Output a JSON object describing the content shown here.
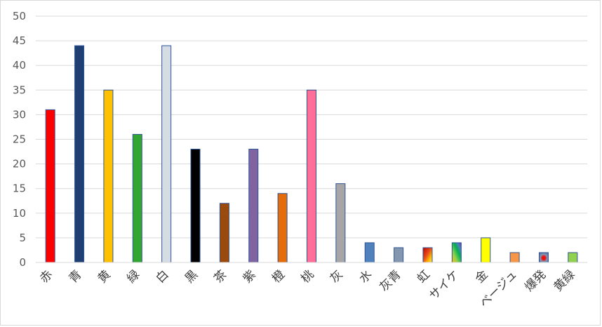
{
  "chart_data": {
    "type": "bar",
    "categories": [
      "赤",
      "青",
      "黄",
      "緑",
      "白",
      "黒",
      "茶",
      "紫",
      "橙",
      "桃",
      "灰",
      "水",
      "灰青",
      "虹",
      "サイケ",
      "金",
      "ベージュ",
      "爆発",
      "黄緑"
    ],
    "values": [
      31,
      44,
      35,
      26,
      44,
      23,
      12,
      23,
      14,
      35,
      16,
      4,
      3,
      3,
      4,
      5,
      2,
      2,
      2
    ],
    "colors": [
      "#ff0000",
      "#1f3f73",
      "#ffc000",
      "#33a532",
      "#d6dce4",
      "#000000",
      "#9a4a0c",
      "#8064a2",
      "#e46c0a",
      "#ff6f9a",
      "#a6a6a6",
      "#4f81bd",
      "#8497b0",
      "gradient-rainbow",
      "gradient-psychedelic",
      "#ffff00",
      "#f79646",
      "pattern-explosion",
      "#92d050"
    ],
    "bar_outline": "#2f5597",
    "ylim": [
      0,
      50
    ],
    "yticks": [
      "0",
      "5",
      "10",
      "15",
      "20",
      "25",
      "30",
      "35",
      "40",
      "45",
      "50"
    ],
    "grid": true,
    "title": "",
    "xlabel": "",
    "ylabel": ""
  }
}
